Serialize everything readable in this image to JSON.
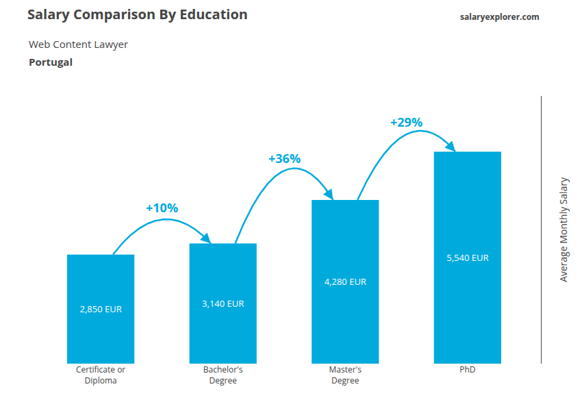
{
  "chart_data": {
    "type": "bar",
    "title": "Salary Comparison By Education",
    "subtitle": "Web Content Lawyer",
    "country": "Portugal",
    "watermark": "salaryexplorer.com",
    "ylabel": "Average Monthly Salary",
    "categories": [
      "Certificate or\nDiploma",
      "Bachelor's\nDegree",
      "Master's\nDegree",
      "PhD"
    ],
    "values": [
      2850,
      3140,
      4280,
      5540
    ],
    "value_labels": [
      "2,850 EUR",
      "3,140 EUR",
      "4,280 EUR",
      "5,540 EUR"
    ],
    "data_labels": true,
    "annotations": [
      "+10%",
      "+36%",
      "+29%"
    ],
    "color": "#00AADD",
    "ylim": [
      0,
      7000
    ],
    "grid": false,
    "tick_labels": "x"
  }
}
